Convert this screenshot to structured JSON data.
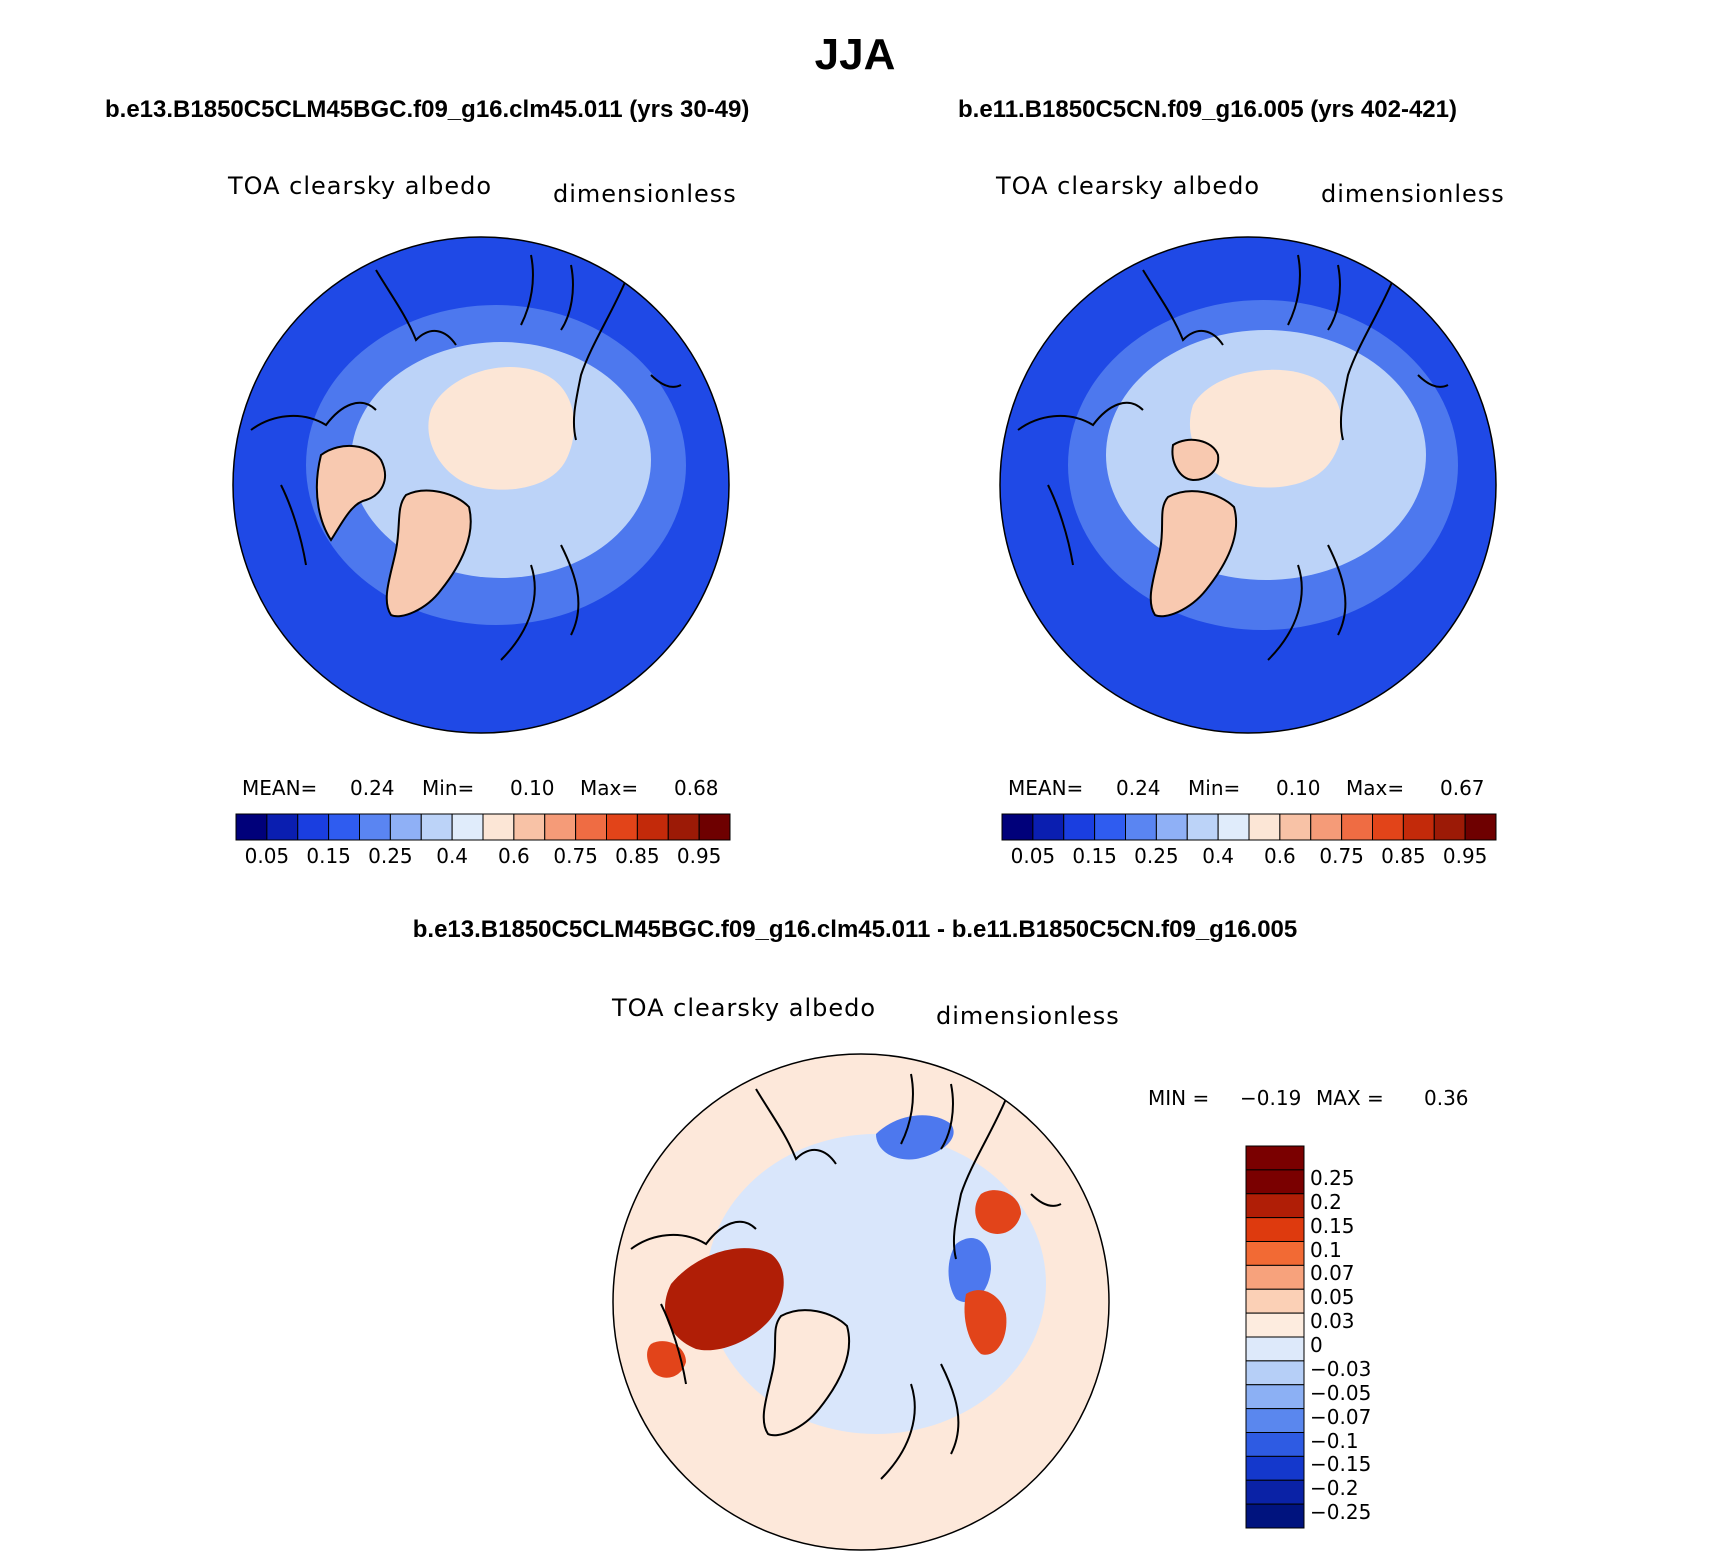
{
  "title": "JJA",
  "panels": [
    {
      "case_title": "b.e13.B1850C5CLM45BGC.f09_g16.clm45.011 (yrs 30-49)",
      "variable": "TOA clearsky albedo",
      "units": "dimensionless",
      "stats": {
        "mean_label": "MEAN=",
        "mean": "0.24",
        "min_label": "Min=",
        "min": "0.10",
        "max_label": "Max=",
        "max": "0.68"
      }
    },
    {
      "case_title": "b.e11.B1850C5CN.f09_g16.005 (yrs 402-421)",
      "variable": "TOA clearsky albedo",
      "units": "dimensionless",
      "stats": {
        "mean_label": "MEAN=",
        "mean": "0.24",
        "min_label": "Min=",
        "min": "0.10",
        "max_label": "Max=",
        "max": "0.67"
      }
    }
  ],
  "colorbar": {
    "colors": [
      "#00007a",
      "#0a1eb0",
      "#1a3ee0",
      "#2f5cf0",
      "#5a85f2",
      "#8fb0f6",
      "#bcd3f8",
      "#e0ecfb",
      "#fce6d6",
      "#f8c2a6",
      "#f59b78",
      "#ef6c43",
      "#e24419",
      "#c32a0a",
      "#9c1a06",
      "#6e0000"
    ],
    "tick_labels": [
      "0.05",
      "0.15",
      "0.25",
      "0.4",
      "0.6",
      "0.75",
      "0.85",
      "0.95"
    ]
  },
  "diff": {
    "title": "b.e13.B1850C5CLM45BGC.f09_g16.clm45.011 - b.e11.B1850C5CN.f09_g16.005",
    "variable": "TOA clearsky albedo",
    "units": "dimensionless",
    "min_label": "MIN =",
    "min": "−0.19",
    "max_label": "MAX =",
    "max": "0.36",
    "colorbar": {
      "colors": [
        "#7a0000",
        "#b01e06",
        "#de3a0e",
        "#f26a34",
        "#f7a27c",
        "#fbd0b6",
        "#fdecdf",
        "#dde9fa",
        "#b6cff7",
        "#8cb0f4",
        "#5a87ee",
        "#2e5be3",
        "#1438cc",
        "#0a22a6",
        "#00137e"
      ],
      "labels": [
        "0.25",
        "0.2",
        "0.15",
        "0.1",
        "0.07",
        "0.05",
        "0.03",
        "0",
        "−0.03",
        "−0.05",
        "−0.07",
        "−0.1",
        "−0.15",
        "−0.2",
        "−0.25"
      ]
    }
  },
  "map_colors": {
    "ocean_low": "#1f49e6",
    "ocean_mid": "#4d78ee",
    "ice_edge": "#bcd3f8",
    "ice_core": "#fce6d6",
    "greenland": "#f8c9b0",
    "coast": "#000000",
    "diff_background": "#fde8da",
    "diff_arctic": "#d9e6fb",
    "diff_neg": "#4d78ee",
    "diff_pos": "#e2441a",
    "diff_pos_strong": "#b01e06"
  }
}
